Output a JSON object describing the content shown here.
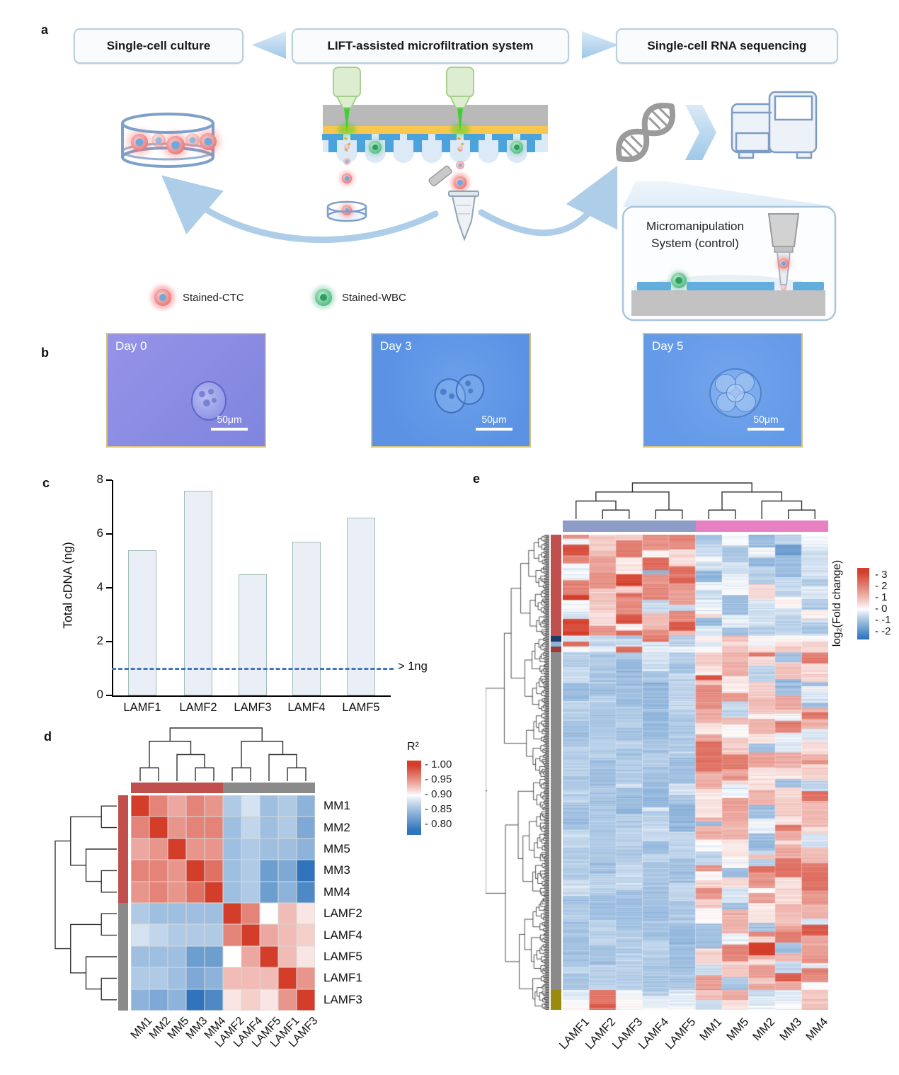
{
  "panel_labels": {
    "a": "a",
    "b": "b",
    "c": "c",
    "d": "d",
    "e": "e"
  },
  "panel_a": {
    "flow_boxes": [
      "Single-cell culture",
      "LIFT-assisted microfiltration system",
      "Single-cell RNA sequencing"
    ],
    "legend": [
      {
        "label": "Stained-CTC",
        "color": "#e36a6a"
      },
      {
        "label": "Stained-WBC",
        "color": "#56b987"
      }
    ],
    "inset_line1": "Micromanipulation",
    "inset_line2": "System (control)"
  },
  "panel_b": {
    "frames": [
      {
        "label": "Day 0",
        "scale_label": "50μm"
      },
      {
        "label": "Day 3",
        "scale_label": "50μm"
      },
      {
        "label": "Day 5",
        "scale_label": "50μm"
      }
    ]
  },
  "chart_data": [
    {
      "id": "c",
      "type": "bar",
      "categories": [
        "LAMF1",
        "LAMF2",
        "LAMF3",
        "LAMF4",
        "LAMF5"
      ],
      "values": [
        5.4,
        7.6,
        4.5,
        5.7,
        6.6
      ],
      "ylabel": "Total cDNA (ng)",
      "ylim": [
        0,
        8
      ],
      "yticks": [
        0,
        2,
        4,
        6,
        8
      ],
      "threshold_value": 1,
      "threshold_label": "> 1ng",
      "bar_fill": "#e9eef7",
      "bar_border": "#a3bdb6",
      "threshold_color": "#4376bd"
    },
    {
      "id": "d",
      "type": "heatmap",
      "legend_title": "R²",
      "legend_ticks": [
        "1.00",
        "0.95",
        "0.90",
        "0.85",
        "0.80"
      ],
      "rows": [
        "MM1",
        "MM2",
        "MM5",
        "MM3",
        "MM4",
        "LAMF2",
        "LAMF4",
        "LAMF5",
        "LAMF1",
        "LAMF3"
      ],
      "cols": [
        "MM1",
        "MM2",
        "MM5",
        "MM3",
        "MM4",
        "LAMF2",
        "LAMF4",
        "LAMF5",
        "LAMF1",
        "LAMF3"
      ],
      "group_colors": {
        "MM": "#c0504d",
        "LAMF": "#8a8a8a"
      },
      "col_groups": [
        "MM",
        "MM",
        "MM",
        "MM",
        "MM",
        "LAMF",
        "LAMF",
        "LAMF",
        "LAMF",
        "LAMF"
      ],
      "vmin": 0.78,
      "vmid": 0.9,
      "vmax": 1.0,
      "values": [
        [
          1.0,
          0.96,
          0.94,
          0.96,
          0.95,
          0.86,
          0.88,
          0.85,
          0.86,
          0.84
        ],
        [
          0.96,
          1.0,
          0.95,
          0.96,
          0.96,
          0.85,
          0.87,
          0.85,
          0.86,
          0.83
        ],
        [
          0.94,
          0.95,
          1.0,
          0.95,
          0.95,
          0.85,
          0.86,
          0.85,
          0.85,
          0.84
        ],
        [
          0.96,
          0.96,
          0.95,
          1.0,
          0.97,
          0.85,
          0.86,
          0.82,
          0.83,
          0.78
        ],
        [
          0.95,
          0.96,
          0.95,
          0.97,
          1.0,
          0.85,
          0.86,
          0.82,
          0.84,
          0.8
        ],
        [
          0.86,
          0.85,
          0.85,
          0.85,
          0.85,
          1.0,
          0.96,
          0.9,
          0.93,
          0.91
        ],
        [
          0.88,
          0.87,
          0.86,
          0.86,
          0.86,
          0.96,
          1.0,
          0.94,
          0.93,
          0.92
        ],
        [
          0.85,
          0.85,
          0.85,
          0.82,
          0.82,
          0.9,
          0.94,
          1.0,
          0.93,
          0.91
        ],
        [
          0.86,
          0.86,
          0.85,
          0.83,
          0.84,
          0.93,
          0.93,
          0.93,
          1.0,
          0.95
        ],
        [
          0.84,
          0.83,
          0.84,
          0.78,
          0.8,
          0.91,
          0.92,
          0.91,
          0.95,
          1.0
        ]
      ],
      "dendro_top": [
        [
          [
            "MM1",
            "MM2"
          ],
          [
            "MM5",
            [
              "MM3",
              "MM4"
            ]
          ]
        ],
        [
          [
            "LAMF2",
            "LAMF4"
          ],
          [
            "LAMF5",
            [
              "LAMF1",
              "LAMF3"
            ]
          ]
        ]
      ],
      "dendro_left": [
        [
          [
            "MM1",
            "MM2"
          ],
          [
            "MM5",
            [
              "MM3",
              "MM4"
            ]
          ]
        ],
        [
          [
            "LAMF2",
            "LAMF4"
          ],
          [
            "LAMF5",
            [
              "LAMF1",
              "LAMF3"
            ]
          ]
        ]
      ]
    },
    {
      "id": "e",
      "type": "heatmap-generative",
      "legend_title": "log₂(Fold change)",
      "legend_ticks": [
        "3",
        "2",
        "1",
        "0",
        "-1",
        "-2"
      ],
      "columns": [
        "LAMF1",
        "LAMF2",
        "LAMF3",
        "LAMF4",
        "LAMF5",
        "MM1",
        "MM5",
        "MM2",
        "MM3",
        "MM4"
      ],
      "column_groups": [
        {
          "label": "LAMF",
          "color": "#8d9dc7",
          "span": 5
        },
        {
          "label": "MM",
          "color": "#e97fc3",
          "span": 5
        }
      ],
      "vmin": -2.6,
      "vmax": 3.3,
      "n_rows": 480,
      "seed": 7,
      "row_blocks": [
        {
          "color": "#c0504d",
          "frac": 0.212,
          "lamf": {
            "mean": 1.5,
            "sd": 1.0
          },
          "mm": {
            "mean": -0.55,
            "sd": 0.45
          }
        },
        {
          "color": "#1f3b66",
          "frac": 0.013,
          "lamf": {
            "mean": -0.6,
            "sd": 0.3
          },
          "mm": {
            "mean": 0.5,
            "sd": 0.4
          },
          "overrides": {
            "LAMF4": {
              "mean": 1.8,
              "sd": 0.6
            }
          }
        },
        {
          "color": "#8fb4dc",
          "frac": 0.011,
          "lamf": {
            "mean": -0.5,
            "sd": 0.3
          },
          "mm": {
            "mean": 0.5,
            "sd": 0.4
          },
          "overrides": {
            "LAMF1": {
              "mean": 2.2,
              "sd": 0.5
            }
          }
        },
        {
          "color": "#9e3a38",
          "frac": 0.012,
          "lamf": {
            "mean": -0.5,
            "sd": 0.3
          },
          "mm": {
            "mean": 0.5,
            "sd": 0.4
          },
          "overrides": {
            "LAMF3": {
              "mean": 2.3,
              "sd": 0.5
            }
          }
        },
        {
          "color": "#8a8a8a",
          "frac": 0.71,
          "lamf": {
            "mean": -0.85,
            "sd": 0.22
          },
          "mm": {
            "mean": 0.75,
            "sd": 1.05
          }
        },
        {
          "color": "#9a8a10",
          "frac": 0.042,
          "lamf": {
            "mean": -0.35,
            "sd": 0.3
          },
          "mm": {
            "mean": 0.45,
            "sd": 0.5
          },
          "overrides": {
            "LAMF2": {
              "mean": 2.6,
              "sd": 0.5
            }
          }
        }
      ],
      "dendro_top": [
        [
          [
            "LAMF1",
            [
              "LAMF2",
              "LAMF3"
            ]
          ],
          [
            "LAMF4",
            "LAMF5"
          ]
        ],
        [
          [
            "MM1",
            "MM5"
          ],
          [
            "MM2",
            [
              "MM3",
              "MM4"
            ]
          ]
        ]
      ]
    }
  ],
  "palette": {
    "heat_red": "#d43d2a",
    "heat_blue": "#2f74bc"
  }
}
